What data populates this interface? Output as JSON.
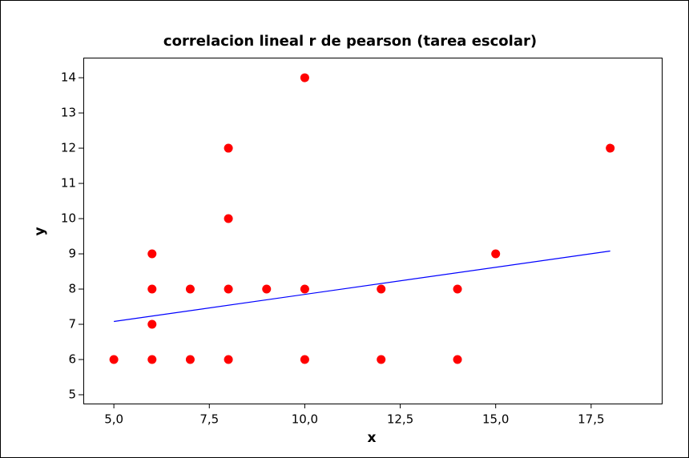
{
  "chart_data": {
    "type": "scatter",
    "title": "correlacion lineal r de pearson (tarea escolar)",
    "x_label": "x",
    "y_label": "y",
    "series": [
      {
        "name": "y",
        "color": "#ff0000",
        "x": [
          5,
          6,
          6,
          6,
          6,
          7,
          7,
          8,
          8,
          8,
          8,
          9,
          10,
          10,
          10,
          12,
          12,
          14,
          14,
          15,
          18
        ],
        "values": [
          6,
          9,
          8,
          7,
          6,
          8,
          6,
          12,
          10,
          8,
          6,
          8,
          14,
          8,
          6,
          8,
          6,
          8,
          6,
          9,
          12
        ]
      }
    ],
    "fit_line": {
      "color": "#0000ff",
      "x": [
        5,
        18
      ],
      "values": [
        7.08,
        9.08
      ]
    },
    "xlim": [
      4.2,
      19.35
    ],
    "ylim": [
      4.75,
      14.57
    ],
    "xticks": [
      {
        "value": 5,
        "label": "5,0"
      },
      {
        "value": 7.5,
        "label": "7,5"
      },
      {
        "value": 10,
        "label": "10,0"
      },
      {
        "value": 12.5,
        "label": "12,5"
      },
      {
        "value": 15,
        "label": "15,0"
      },
      {
        "value": 17.5,
        "label": "17,5"
      }
    ],
    "yticks": [
      5,
      6,
      7,
      8,
      9,
      10,
      11,
      12,
      13,
      14
    ]
  }
}
